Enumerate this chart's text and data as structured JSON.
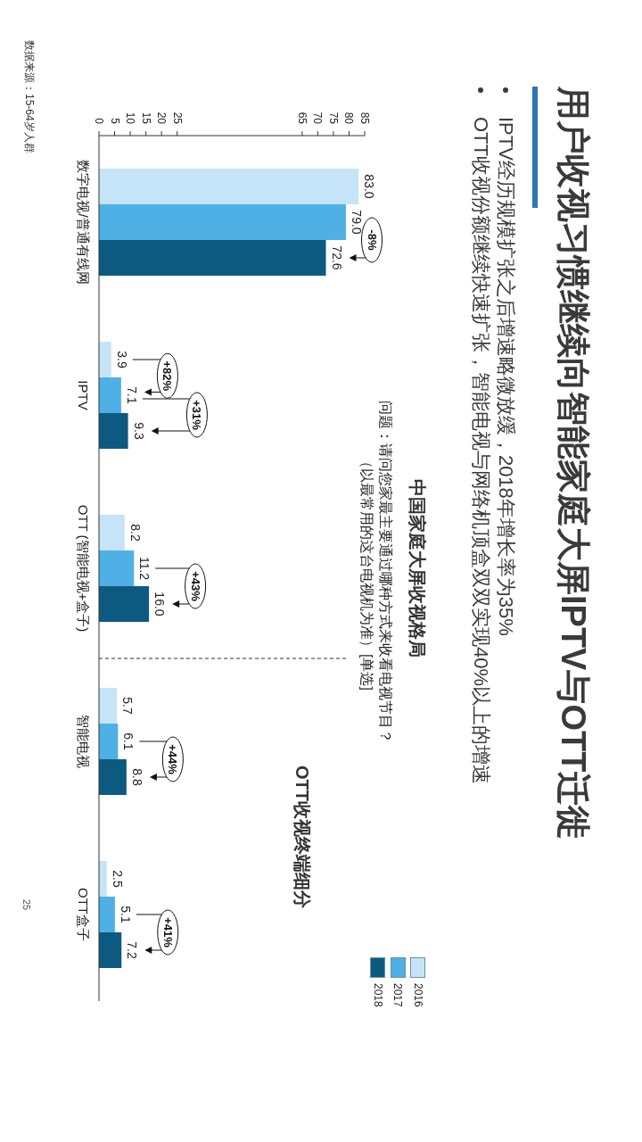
{
  "chart_data": {
    "type": "bar",
    "orientation": "horizontal",
    "title": "用户收视习惯继续向智能家庭大屏IPTV与OTT迁徙",
    "subtitle": "中国家庭大屏收视格局",
    "categories": [
      "数字电视/普通有线网",
      "IPTV",
      "OTT (智能电视+盒子)",
      "智能电视",
      "OTT盒子"
    ],
    "series": [
      {
        "name": "2016",
        "color": "#c5e4f7",
        "values": [
          83.0,
          3.9,
          8.2,
          5.7,
          2.5
        ],
        "value_labels": [
          "83.0",
          "3.9",
          "8.2",
          "5.7",
          "2.5"
        ]
      },
      {
        "name": "2017",
        "color": "#4fb0e5",
        "values": [
          79.0,
          7.1,
          11.2,
          6.1,
          5.1
        ],
        "value_labels": [
          "79.0",
          "7.1",
          "11.2",
          "6.1",
          "5.1"
        ]
      },
      {
        "name": "2018",
        "color": "#0d5a80",
        "values": [
          72.6,
          9.3,
          16.0,
          8.8,
          7.2
        ],
        "value_labels": [
          "72.6",
          "9.3",
          "16.0",
          "8.8",
          "7.2"
        ]
      }
    ],
    "xlim": [
      0,
      85
    ],
    "xticks": [
      0,
      5,
      10,
      15,
      20,
      25,
      65,
      70,
      75,
      80,
      85
    ],
    "legend": "bottom right",
    "annotations": [
      "IPTV经历规模扩张之后增速略微放缓，2018年增长率为35%",
      "OTT收视份额继续快速扩张，智能电视与网络机顶盒双双实现40%以上的增速",
      "问题：请问您家最主要通过哪种方式来收看电视节目？（以最常用的这台电视机为准）[单选]",
      "OTT收视终端细分",
      "数据来源：15-64岁人群",
      "25",
      "-8%",
      "+82%",
      "+31%",
      "+43%",
      "+44%",
      "+41%"
    ]
  }
}
